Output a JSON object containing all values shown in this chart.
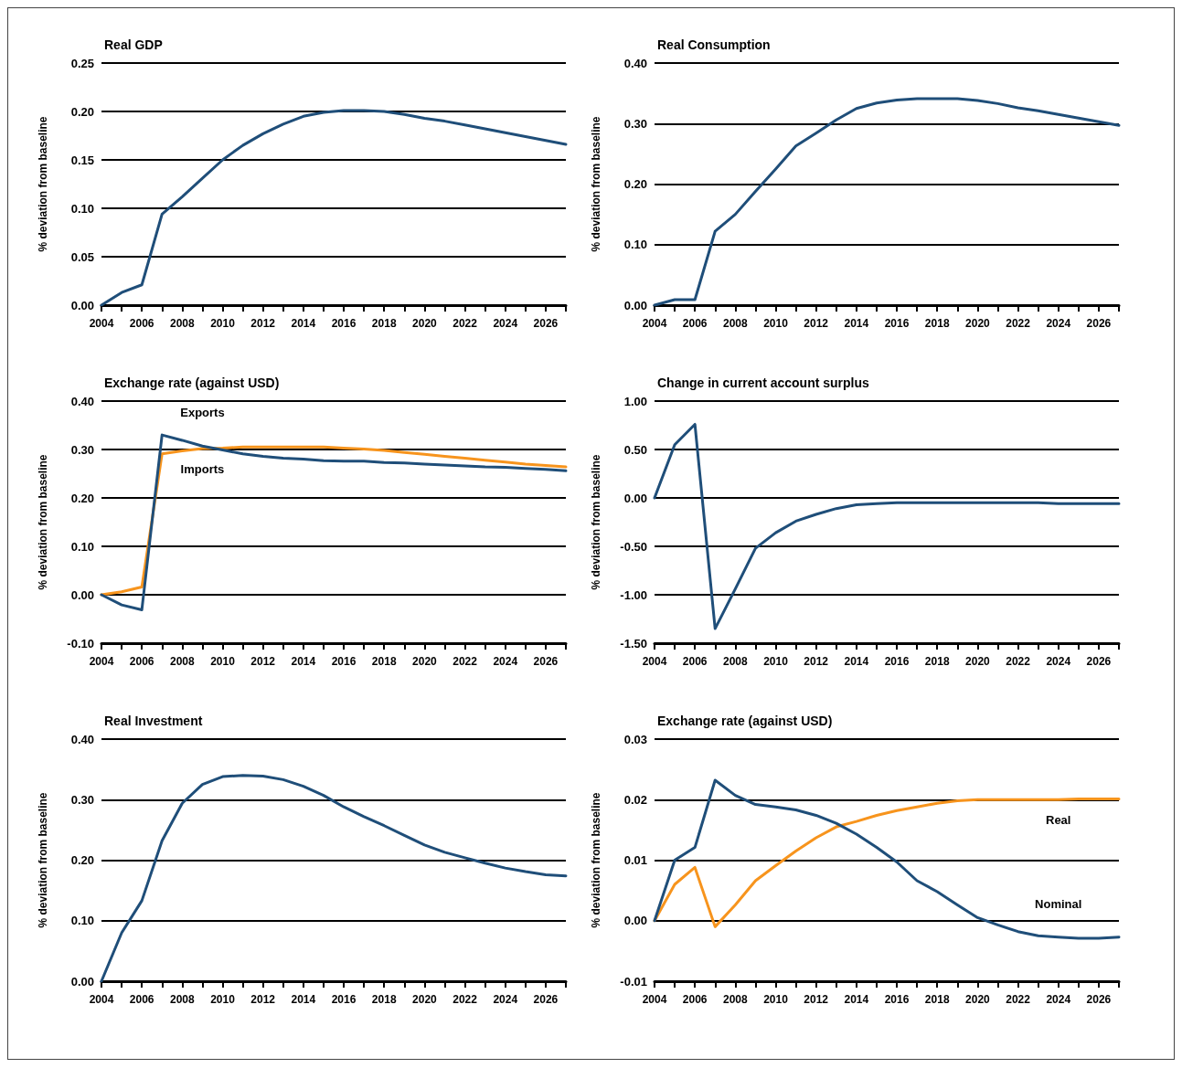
{
  "chart_data": [
    {
      "type": "line",
      "title": "Real GDP",
      "ylabel": "% deviation from baseline",
      "grid": "y",
      "legend": false,
      "marker": "none",
      "x": [
        2004,
        2005,
        2006,
        2007,
        2008,
        2009,
        2010,
        2011,
        2012,
        2013,
        2014,
        2015,
        2016,
        2017,
        2018,
        2019,
        2020,
        2021,
        2022,
        2023,
        2024,
        2025,
        2026,
        2027
      ],
      "xlim": [
        2004,
        2027
      ],
      "xticks": [
        2004,
        {
          "value": 2005,
          "label": null
        },
        2006,
        {
          "value": 2007,
          "label": null
        },
        2008,
        {
          "value": 2009,
          "label": null
        },
        2010,
        {
          "value": 2011,
          "label": null
        },
        2012,
        {
          "value": 2013,
          "label": null
        },
        2014,
        {
          "value": 2015,
          "label": null
        },
        2016,
        {
          "value": 2017,
          "label": null
        },
        2018,
        {
          "value": 2019,
          "label": null
        },
        2020,
        {
          "value": 2021,
          "label": null
        },
        2022,
        {
          "value": 2023,
          "label": null
        },
        2024,
        {
          "value": 2025,
          "label": null
        },
        2026,
        {
          "value": 2027,
          "label": null
        }
      ],
      "ylim": [
        0,
        0.25
      ],
      "yticks": [
        {
          "value": 0,
          "label": "0.00"
        },
        {
          "value": 0.05,
          "label": "0.05"
        },
        {
          "value": 0.1,
          "label": "0.10"
        },
        {
          "value": 0.15,
          "label": "0.15"
        },
        {
          "value": 0.2,
          "label": "0.20"
        },
        {
          "value": 0.25,
          "label": "0.25"
        }
      ],
      "series": [
        {
          "color": "#1f4e79",
          "values": [
            0,
            0.013,
            0.021,
            0.094,
            0.112,
            0.131,
            0.15,
            0.165,
            0.177,
            0.187,
            0.195,
            0.199,
            0.201,
            0.201,
            0.2,
            0.197,
            0.193,
            0.19,
            0.186,
            0.182,
            0.178,
            0.174,
            0.17,
            0.166
          ]
        }
      ]
    },
    {
      "type": "line",
      "title": "Real Consumption",
      "ylabel": "% deviation from baseline",
      "grid": "y",
      "legend": false,
      "marker": "none",
      "x": [
        2004,
        2005,
        2006,
        2007,
        2008,
        2009,
        2010,
        2011,
        2012,
        2013,
        2014,
        2015,
        2016,
        2017,
        2018,
        2019,
        2020,
        2021,
        2022,
        2023,
        2024,
        2025,
        2026,
        2027
      ],
      "xlim": [
        2004,
        2027
      ],
      "xticks": [
        2004,
        {
          "value": 2005,
          "label": null
        },
        2006,
        {
          "value": 2007,
          "label": null
        },
        2008,
        {
          "value": 2009,
          "label": null
        },
        2010,
        {
          "value": 2011,
          "label": null
        },
        2012,
        {
          "value": 2013,
          "label": null
        },
        2014,
        {
          "value": 2015,
          "label": null
        },
        2016,
        {
          "value": 2017,
          "label": null
        },
        2018,
        {
          "value": 2019,
          "label": null
        },
        2020,
        {
          "value": 2021,
          "label": null
        },
        2022,
        {
          "value": 2023,
          "label": null
        },
        2024,
        {
          "value": 2025,
          "label": null
        },
        2026,
        {
          "value": 2027,
          "label": null
        }
      ],
      "ylim": [
        0,
        0.4
      ],
      "yticks": [
        {
          "value": 0,
          "label": "0.00"
        },
        {
          "value": 0.1,
          "label": "0.10"
        },
        {
          "value": 0.2,
          "label": "0.20"
        },
        {
          "value": 0.3,
          "label": "0.30"
        },
        {
          "value": 0.4,
          "label": "0.40"
        }
      ],
      "series": [
        {
          "color": "#1f4e79",
          "values": [
            0,
            0.009,
            0.009,
            0.122,
            0.15,
            0.188,
            0.225,
            0.263,
            0.284,
            0.306,
            0.325,
            0.334,
            0.339,
            0.341,
            0.341,
            0.341,
            0.338,
            0.333,
            0.326,
            0.321,
            0.315,
            0.309,
            0.303,
            0.297
          ]
        }
      ]
    },
    {
      "type": "line",
      "title": "Exchange rate (against USD)",
      "ylabel": "% deviation from baseline",
      "grid": "y",
      "legend": false,
      "marker": "none",
      "x": [
        2004,
        2005,
        2006,
        2007,
        2008,
        2009,
        2010,
        2011,
        2012,
        2013,
        2014,
        2015,
        2016,
        2017,
        2018,
        2019,
        2020,
        2021,
        2022,
        2023,
        2024,
        2025,
        2026,
        2027
      ],
      "xlim": [
        2004,
        2027
      ],
      "xticks": [
        2004,
        {
          "value": 2005,
          "label": null
        },
        2006,
        {
          "value": 2007,
          "label": null
        },
        2008,
        {
          "value": 2009,
          "label": null
        },
        2010,
        {
          "value": 2011,
          "label": null
        },
        2012,
        {
          "value": 2013,
          "label": null
        },
        2014,
        {
          "value": 2015,
          "label": null
        },
        2016,
        {
          "value": 2017,
          "label": null
        },
        2018,
        {
          "value": 2019,
          "label": null
        },
        2020,
        {
          "value": 2021,
          "label": null
        },
        2022,
        {
          "value": 2023,
          "label": null
        },
        2024,
        {
          "value": 2025,
          "label": null
        },
        2026,
        {
          "value": 2027,
          "label": null
        }
      ],
      "ylim": [
        -0.1,
        0.4
      ],
      "yticks": [
        {
          "value": -0.1,
          "label": "-0.10"
        },
        {
          "value": 0,
          "label": "0.00"
        },
        {
          "value": 0.1,
          "label": "0.10"
        },
        {
          "value": 0.2,
          "label": "0.20"
        },
        {
          "value": 0.3,
          "label": "0.30"
        },
        {
          "value": 0.4,
          "label": "0.40"
        }
      ],
      "series": [
        {
          "name": "Exports",
          "color": "#1f4e79",
          "values": [
            0,
            -0.021,
            -0.031,
            0.33,
            0.319,
            0.307,
            0.299,
            0.291,
            0.286,
            0.282,
            0.28,
            0.277,
            0.276,
            0.276,
            0.273,
            0.272,
            0.27,
            0.268,
            0.266,
            0.264,
            0.263,
            0.261,
            0.259,
            0.256
          ]
        },
        {
          "name": "Imports",
          "color": "#f7941d",
          "values": [
            0,
            0.006,
            0.016,
            0.291,
            0.297,
            0.302,
            0.303,
            0.305,
            0.305,
            0.305,
            0.305,
            0.305,
            0.303,
            0.301,
            0.298,
            0.294,
            0.29,
            0.286,
            0.282,
            0.278,
            0.274,
            0.27,
            0.267,
            0.264
          ]
        }
      ]
    },
    {
      "type": "line",
      "title": "Change in current account surplus",
      "ylabel": "% deviation from baseline",
      "grid": "y",
      "legend": false,
      "marker": "none",
      "x": [
        2004,
        2005,
        2006,
        2007,
        2008,
        2009,
        2010,
        2011,
        2012,
        2013,
        2014,
        2015,
        2016,
        2017,
        2018,
        2019,
        2020,
        2021,
        2022,
        2023,
        2024,
        2025,
        2026,
        2027
      ],
      "xlim": [
        2004,
        2027
      ],
      "xticks": [
        2004,
        {
          "value": 2005,
          "label": null
        },
        2006,
        {
          "value": 2007,
          "label": null
        },
        2008,
        {
          "value": 2009,
          "label": null
        },
        2010,
        {
          "value": 2011,
          "label": null
        },
        2012,
        {
          "value": 2013,
          "label": null
        },
        2014,
        {
          "value": 2015,
          "label": null
        },
        2016,
        {
          "value": 2017,
          "label": null
        },
        2018,
        {
          "value": 2019,
          "label": null
        },
        2020,
        {
          "value": 2021,
          "label": null
        },
        2022,
        {
          "value": 2023,
          "label": null
        },
        2024,
        {
          "value": 2025,
          "label": null
        },
        2026,
        {
          "value": 2027,
          "label": null
        }
      ],
      "ylim": [
        -1.5,
        1
      ],
      "yticks": [
        {
          "value": -1.5,
          "label": "-1.50"
        },
        {
          "value": -1,
          "label": "-1.00"
        },
        {
          "value": -0.5,
          "label": "-0.50"
        },
        {
          "value": 0,
          "label": "0.00"
        },
        {
          "value": 0.5,
          "label": "0.50"
        },
        {
          "value": 1,
          "label": "1.00"
        }
      ],
      "series": [
        {
          "color": "#1f4e79",
          "values": [
            0,
            0.55,
            0.76,
            -1.35,
            -0.94,
            -0.52,
            -0.36,
            -0.24,
            -0.17,
            -0.11,
            -0.07,
            -0.06,
            -0.05,
            -0.05,
            -0.05,
            -0.05,
            -0.05,
            -0.05,
            -0.05,
            -0.05,
            -0.06,
            -0.06,
            -0.06,
            -0.06
          ]
        }
      ]
    },
    {
      "type": "line",
      "title": "Real Investment",
      "ylabel": "% deviation from baseline",
      "grid": "y",
      "legend": false,
      "marker": "none",
      "x": [
        2004,
        2005,
        2006,
        2007,
        2008,
        2009,
        2010,
        2011,
        2012,
        2013,
        2014,
        2015,
        2016,
        2017,
        2018,
        2019,
        2020,
        2021,
        2022,
        2023,
        2024,
        2025,
        2026,
        2027
      ],
      "xlim": [
        2004,
        2027
      ],
      "xticks": [
        2004,
        {
          "value": 2005,
          "label": null
        },
        2006,
        {
          "value": 2007,
          "label": null
        },
        2008,
        {
          "value": 2009,
          "label": null
        },
        2010,
        {
          "value": 2011,
          "label": null
        },
        2012,
        {
          "value": 2013,
          "label": null
        },
        2014,
        {
          "value": 2015,
          "label": null
        },
        2016,
        {
          "value": 2017,
          "label": null
        },
        2018,
        {
          "value": 2019,
          "label": null
        },
        2020,
        {
          "value": 2021,
          "label": null
        },
        2022,
        {
          "value": 2023,
          "label": null
        },
        2024,
        {
          "value": 2025,
          "label": null
        },
        2026,
        {
          "value": 2027,
          "label": null
        }
      ],
      "ylim": [
        0,
        0.4
      ],
      "yticks": [
        {
          "value": 0,
          "label": "0.00"
        },
        {
          "value": 0.1,
          "label": "0.10"
        },
        {
          "value": 0.2,
          "label": "0.20"
        },
        {
          "value": 0.3,
          "label": "0.30"
        },
        {
          "value": 0.4,
          "label": "0.40"
        }
      ],
      "series": [
        {
          "color": "#1f4e79",
          "values": [
            0,
            0.08,
            0.133,
            0.232,
            0.294,
            0.325,
            0.338,
            0.34,
            0.339,
            0.333,
            0.322,
            0.307,
            0.288,
            0.272,
            0.257,
            0.241,
            0.225,
            0.213,
            0.204,
            0.195,
            0.187,
            0.181,
            0.176,
            0.174
          ]
        }
      ]
    },
    {
      "type": "line",
      "title": "Exchange rate (against USD)",
      "ylabel": "% deviation from baseline",
      "grid": "y",
      "legend": false,
      "marker": "none",
      "x": [
        2004,
        2005,
        2006,
        2007,
        2008,
        2009,
        2010,
        2011,
        2012,
        2013,
        2014,
        2015,
        2016,
        2017,
        2018,
        2019,
        2020,
        2021,
        2022,
        2023,
        2024,
        2025,
        2026,
        2027
      ],
      "xlim": [
        2004,
        2027
      ],
      "xticks": [
        2004,
        {
          "value": 2005,
          "label": null
        },
        2006,
        {
          "value": 2007,
          "label": null
        },
        2008,
        {
          "value": 2009,
          "label": null
        },
        2010,
        {
          "value": 2011,
          "label": null
        },
        2012,
        {
          "value": 2013,
          "label": null
        },
        2014,
        {
          "value": 2015,
          "label": null
        },
        2016,
        {
          "value": 2017,
          "label": null
        },
        2018,
        {
          "value": 2019,
          "label": null
        },
        2020,
        {
          "value": 2021,
          "label": null
        },
        2022,
        {
          "value": 2023,
          "label": null
        },
        2024,
        {
          "value": 2025,
          "label": null
        },
        2026,
        {
          "value": 2027,
          "label": null
        }
      ],
      "ylim": [
        -0.01,
        0.03
      ],
      "yticks": [
        {
          "value": -0.01,
          "label": "-0.01"
        },
        {
          "value": 0,
          "label": "0.00"
        },
        {
          "value": 0.01,
          "label": "0.01"
        },
        {
          "value": 0.02,
          "label": "0.02"
        },
        {
          "value": 0.03,
          "label": "0.03"
        }
      ],
      "series": [
        {
          "name": "Nominal",
          "color": "#1f4e79",
          "values": [
            0,
            0.01,
            0.0121,
            0.0232,
            0.0207,
            0.0192,
            0.0188,
            0.0183,
            0.0174,
            0.0161,
            0.0143,
            0.0121,
            0.0097,
            0.0066,
            0.0048,
            0.0026,
            0.0005,
            -0.0007,
            -0.0018,
            -0.0025,
            -0.0027,
            -0.0029,
            -0.0029,
            -0.0027
          ]
        },
        {
          "name": "Real",
          "color": "#f7941d",
          "values": [
            0,
            0.006,
            0.0088,
            -0.001,
            0.0026,
            0.0066,
            0.0091,
            0.0115,
            0.0137,
            0.0155,
            0.0164,
            0.0174,
            0.0182,
            0.0188,
            0.0194,
            0.0198,
            0.02,
            0.02,
            0.02,
            0.02,
            0.02,
            0.0201,
            0.0201,
            0.0201
          ]
        }
      ]
    }
  ]
}
